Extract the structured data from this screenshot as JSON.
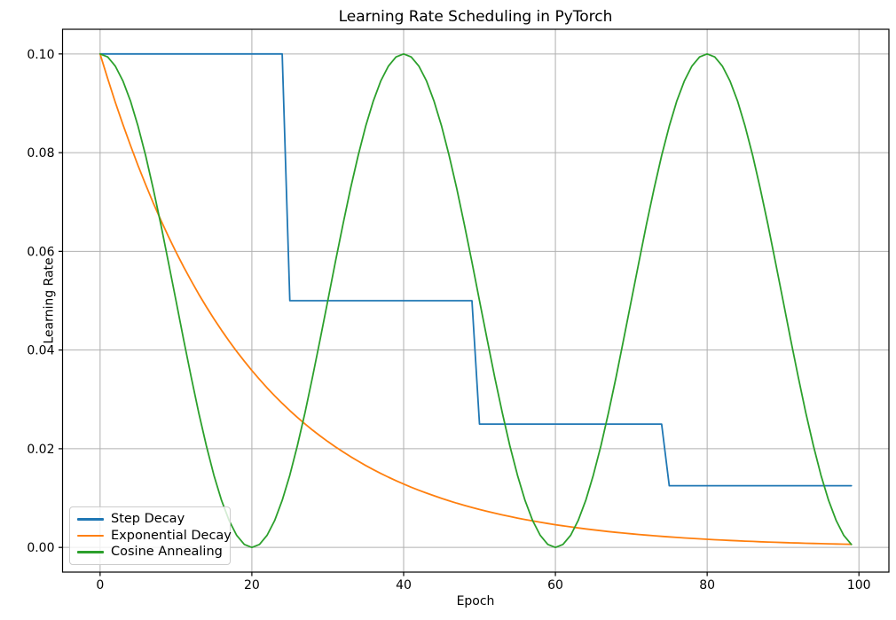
{
  "chart_data": {
    "type": "line",
    "title": "Learning Rate Scheduling in PyTorch",
    "xlabel": "Epoch",
    "ylabel": "Learning Rate",
    "grid": true,
    "legend_position": "lower left",
    "xlim": [
      -4.95,
      103.95
    ],
    "ylim": [
      -0.005,
      0.105
    ],
    "x_ticks": [
      0,
      20,
      40,
      60,
      80,
      100
    ],
    "x_tick_labels": [
      "0",
      "20",
      "40",
      "60",
      "80",
      "100"
    ],
    "y_ticks": [
      0.0,
      0.02,
      0.04,
      0.06,
      0.08,
      0.1
    ],
    "y_tick_labels": [
      "0.00",
      "0.02",
      "0.04",
      "0.06",
      "0.08",
      "0.10"
    ],
    "grid_color": "#b0b0b0",
    "frame_color": "#000000",
    "x": [
      0,
      1,
      2,
      3,
      4,
      5,
      6,
      7,
      8,
      9,
      10,
      11,
      12,
      13,
      14,
      15,
      16,
      17,
      18,
      19,
      20,
      21,
      22,
      23,
      24,
      25,
      26,
      27,
      28,
      29,
      30,
      31,
      32,
      33,
      34,
      35,
      36,
      37,
      38,
      39,
      40,
      41,
      42,
      43,
      44,
      45,
      46,
      47,
      48,
      49,
      50,
      51,
      52,
      53,
      54,
      55,
      56,
      57,
      58,
      59,
      60,
      61,
      62,
      63,
      64,
      65,
      66,
      67,
      68,
      69,
      70,
      71,
      72,
      73,
      74,
      75,
      76,
      77,
      78,
      79,
      80,
      81,
      82,
      83,
      84,
      85,
      86,
      87,
      88,
      89,
      90,
      91,
      92,
      93,
      94,
      95,
      96,
      97,
      98,
      99
    ],
    "series": [
      {
        "name": "Step Decay",
        "color": "#1f77b4",
        "values": [
          0.1,
          0.1,
          0.1,
          0.1,
          0.1,
          0.1,
          0.1,
          0.1,
          0.1,
          0.1,
          0.1,
          0.1,
          0.1,
          0.1,
          0.1,
          0.1,
          0.1,
          0.1,
          0.1,
          0.1,
          0.1,
          0.1,
          0.1,
          0.1,
          0.1,
          0.05,
          0.05,
          0.05,
          0.05,
          0.05,
          0.05,
          0.05,
          0.05,
          0.05,
          0.05,
          0.05,
          0.05,
          0.05,
          0.05,
          0.05,
          0.05,
          0.05,
          0.05,
          0.05,
          0.05,
          0.05,
          0.05,
          0.05,
          0.05,
          0.05,
          0.025,
          0.025,
          0.025,
          0.025,
          0.025,
          0.025,
          0.025,
          0.025,
          0.025,
          0.025,
          0.025,
          0.025,
          0.025,
          0.025,
          0.025,
          0.025,
          0.025,
          0.025,
          0.025,
          0.025,
          0.025,
          0.025,
          0.025,
          0.025,
          0.025,
          0.0125,
          0.0125,
          0.0125,
          0.0125,
          0.0125,
          0.0125,
          0.0125,
          0.0125,
          0.0125,
          0.0125,
          0.0125,
          0.0125,
          0.0125,
          0.0125,
          0.0125,
          0.0125,
          0.0125,
          0.0125,
          0.0125,
          0.0125,
          0.0125,
          0.0125,
          0.0125,
          0.0125,
          0.0125
        ]
      },
      {
        "name": "Exponential Decay",
        "color": "#ff7f0e",
        "values": [
          0.1,
          0.095,
          0.09025,
          0.085738,
          0.081451,
          0.077378,
          0.073509,
          0.069834,
          0.066342,
          0.063025,
          0.059874,
          0.05688,
          0.054036,
          0.051334,
          0.048767,
          0.046329,
          0.044013,
          0.041812,
          0.039721,
          0.037735,
          0.035849,
          0.034056,
          0.032353,
          0.030736,
          0.029199,
          0.027739,
          0.026352,
          0.025034,
          0.023783,
          0.022594,
          0.021464,
          0.020391,
          0.019371,
          0.018403,
          0.017482,
          0.016608,
          0.015778,
          0.014989,
          0.01424,
          0.013528,
          0.012851,
          0.012209,
          0.011598,
          0.011018,
          0.010467,
          0.009944,
          0.009447,
          0.008974,
          0.008526,
          0.008099,
          0.007694,
          0.00731,
          0.006944,
          0.006597,
          0.006267,
          0.005954,
          0.005656,
          0.005373,
          0.005105,
          0.004849,
          0.004607,
          0.004377,
          0.004158,
          0.00395,
          0.003752,
          0.003565,
          0.003387,
          0.003217,
          0.003056,
          0.002904,
          0.002758,
          0.00262,
          0.002489,
          0.002365,
          0.002247,
          0.002134,
          0.002028,
          0.001926,
          0.00183,
          0.001738,
          0.001652,
          0.001569,
          0.001491,
          0.001416,
          0.001345,
          0.001278,
          0.001214,
          0.001153,
          0.001096,
          0.001041,
          0.000989,
          0.000939,
          0.000892,
          0.000848,
          0.000805,
          0.000765,
          0.000727,
          0.000691,
          0.000656,
          0.000623
        ]
      },
      {
        "name": "Cosine Annealing",
        "color": "#2ca02c",
        "values": [
          0.1,
          0.099384,
          0.097553,
          0.09455,
          0.090451,
          0.085355,
          0.079389,
          0.0727,
          0.065451,
          0.057822,
          0.05,
          0.042178,
          0.034549,
          0.0273,
          0.020611,
          0.014645,
          0.009549,
          0.00545,
          0.002447,
          0.000616,
          0.0,
          0.000616,
          0.002447,
          0.00545,
          0.009549,
          0.014645,
          0.020611,
          0.0273,
          0.034549,
          0.042178,
          0.05,
          0.057822,
          0.065451,
          0.0727,
          0.079389,
          0.085355,
          0.090451,
          0.09455,
          0.097553,
          0.099384,
          0.1,
          0.099384,
          0.097553,
          0.09455,
          0.090451,
          0.085355,
          0.079389,
          0.0727,
          0.065451,
          0.057822,
          0.05,
          0.042178,
          0.034549,
          0.0273,
          0.020611,
          0.014645,
          0.009549,
          0.00545,
          0.002447,
          0.000616,
          0.0,
          0.000616,
          0.002447,
          0.00545,
          0.009549,
          0.014645,
          0.020611,
          0.0273,
          0.034549,
          0.042178,
          0.05,
          0.057822,
          0.065451,
          0.0727,
          0.079389,
          0.085355,
          0.090451,
          0.09455,
          0.097553,
          0.099384,
          0.1,
          0.099384,
          0.097553,
          0.09455,
          0.090451,
          0.085355,
          0.079389,
          0.0727,
          0.065451,
          0.057822,
          0.05,
          0.042178,
          0.034549,
          0.0273,
          0.020611,
          0.014645,
          0.009549,
          0.00545,
          0.002447,
          0.000616
        ]
      }
    ]
  }
}
